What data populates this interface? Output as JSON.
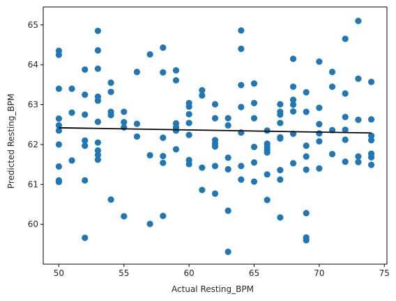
{
  "chart_data": {
    "type": "scatter",
    "title": "",
    "xlabel": "Actual Resting_BPM",
    "ylabel": "Predicted Resting_BPM",
    "xlim": [
      48.8,
      75.2
    ],
    "ylim": [
      59.0,
      65.45
    ],
    "xticks": [
      50,
      55,
      60,
      65,
      70,
      75
    ],
    "yticks": [
      60,
      61,
      62,
      63,
      64,
      65
    ],
    "grid": false,
    "legend": "none",
    "point_color": "#1f77b4",
    "line_color": "#000000",
    "fit_line": {
      "x": [
        50,
        74
      ],
      "y": [
        62.42,
        62.29
      ]
    },
    "points": [
      [
        50,
        64.35
      ],
      [
        50,
        64.25
      ],
      [
        50,
        63.4
      ],
      [
        50,
        62.65
      ],
      [
        50,
        62.48
      ],
      [
        50,
        62.35
      ],
      [
        50,
        62.0
      ],
      [
        50,
        61.45
      ],
      [
        50,
        61.1
      ],
      [
        50,
        61.06
      ],
      [
        51,
        63.4
      ],
      [
        51,
        62.8
      ],
      [
        51,
        61.6
      ],
      [
        52,
        63.88
      ],
      [
        52,
        63.25
      ],
      [
        52,
        62.75
      ],
      [
        52,
        62.1
      ],
      [
        52,
        61.97
      ],
      [
        52,
        61.1
      ],
      [
        52,
        59.66
      ],
      [
        53,
        64.85
      ],
      [
        53,
        64.36
      ],
      [
        53,
        63.9
      ],
      [
        53,
        63.2
      ],
      [
        53,
        63.1
      ],
      [
        53,
        62.57
      ],
      [
        53,
        62.05
      ],
      [
        53,
        61.85
      ],
      [
        53,
        61.74
      ],
      [
        53,
        61.62
      ],
      [
        54,
        63.55
      ],
      [
        54,
        63.32
      ],
      [
        54,
        62.82
      ],
      [
        54,
        62.74
      ],
      [
        54,
        60.62
      ],
      [
        55,
        62.82
      ],
      [
        55,
        62.56
      ],
      [
        55,
        62.43
      ],
      [
        55,
        60.2
      ],
      [
        56,
        63.82
      ],
      [
        56,
        62.52
      ],
      [
        56,
        62.2
      ],
      [
        57,
        64.26
      ],
      [
        57,
        61.73
      ],
      [
        57,
        60.01
      ],
      [
        58,
        64.43
      ],
      [
        58,
        63.81
      ],
      [
        58,
        62.17
      ],
      [
        58,
        61.71
      ],
      [
        58,
        61.54
      ],
      [
        58,
        60.21
      ],
      [
        59,
        63.86
      ],
      [
        59,
        63.61
      ],
      [
        59,
        62.53
      ],
      [
        59,
        62.43
      ],
      [
        59,
        62.35
      ],
      [
        59,
        61.88
      ],
      [
        60,
        63.04
      ],
      [
        60,
        62.95
      ],
      [
        60,
        62.76
      ],
      [
        60,
        62.54
      ],
      [
        60,
        62.24
      ],
      [
        60,
        61.61
      ],
      [
        60,
        61.51
      ],
      [
        61,
        63.36
      ],
      [
        61,
        63.23
      ],
      [
        61,
        61.42
      ],
      [
        61,
        60.86
      ],
      [
        62,
        63.01
      ],
      [
        62,
        62.66
      ],
      [
        62,
        62.11
      ],
      [
        62,
        62.02
      ],
      [
        62,
        61.95
      ],
      [
        62,
        61.46
      ],
      [
        62,
        60.77
      ],
      [
        63,
        62.66
      ],
      [
        63,
        62.48
      ],
      [
        63,
        61.67
      ],
      [
        63,
        61.38
      ],
      [
        63,
        60.34
      ],
      [
        63,
        59.31
      ],
      [
        64,
        64.86
      ],
      [
        64,
        64.4
      ],
      [
        64,
        63.49
      ],
      [
        64,
        62.94
      ],
      [
        64,
        62.3
      ],
      [
        64,
        61.46
      ],
      [
        64,
        61.12
      ],
      [
        65,
        63.53
      ],
      [
        65,
        63.04
      ],
      [
        65,
        62.66
      ],
      [
        65,
        61.94
      ],
      [
        65,
        61.55
      ],
      [
        65,
        61.07
      ],
      [
        66,
        62.35
      ],
      [
        66,
        62.02
      ],
      [
        66,
        61.94
      ],
      [
        66,
        61.86
      ],
      [
        66,
        61.8
      ],
      [
        66,
        61.25
      ],
      [
        66,
        60.61
      ],
      [
        67,
        63.01
      ],
      [
        67,
        62.82
      ],
      [
        67,
        62.75
      ],
      [
        67,
        62.54
      ],
      [
        67,
        62.18
      ],
      [
        67,
        62.15
      ],
      [
        67,
        61.36
      ],
      [
        67,
        61.12
      ],
      [
        67,
        60.17
      ],
      [
        68,
        64.15
      ],
      [
        68,
        63.45
      ],
      [
        68,
        63.12
      ],
      [
        68,
        63.0
      ],
      [
        68,
        62.83
      ],
      [
        68,
        62.27
      ],
      [
        68,
        61.53
      ],
      [
        69,
        63.31
      ],
      [
        69,
        62.82
      ],
      [
        69,
        61.97
      ],
      [
        69,
        61.7
      ],
      [
        69,
        61.37
      ],
      [
        69,
        60.28
      ],
      [
        69,
        59.67
      ],
      [
        69,
        59.6
      ],
      [
        70,
        64.08
      ],
      [
        70,
        62.92
      ],
      [
        70,
        62.51
      ],
      [
        70,
        62.28
      ],
      [
        70,
        62.08
      ],
      [
        70,
        61.4
      ],
      [
        71,
        63.82
      ],
      [
        71,
        63.45
      ],
      [
        71,
        62.36
      ],
      [
        71,
        61.76
      ],
      [
        72,
        64.65
      ],
      [
        72,
        63.28
      ],
      [
        72,
        62.69
      ],
      [
        72,
        62.37
      ],
      [
        72,
        62.12
      ],
      [
        72,
        61.57
      ],
      [
        73,
        65.1
      ],
      [
        73,
        63.65
      ],
      [
        73,
        62.62
      ],
      [
        73,
        61.7
      ],
      [
        73,
        61.56
      ],
      [
        74,
        63.57
      ],
      [
        74,
        62.63
      ],
      [
        74,
        62.22
      ],
      [
        74,
        62.11
      ],
      [
        74,
        61.77
      ],
      [
        74,
        61.68
      ],
      [
        74,
        61.49
      ]
    ]
  }
}
